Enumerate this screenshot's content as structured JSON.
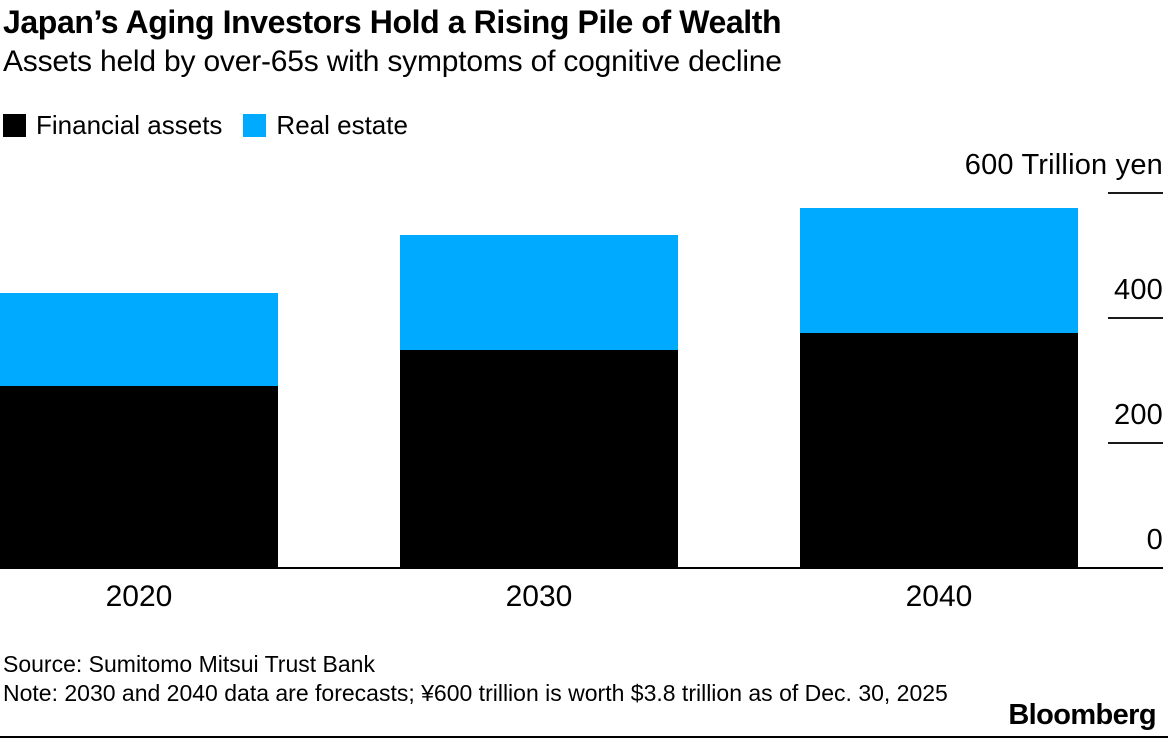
{
  "header": {
    "title": "Japan’s Aging Investors Hold a Rising Pile of Wealth",
    "subtitle": "Assets held by over-65s with symptoms of cognitive decline"
  },
  "chart_data": {
    "type": "bar",
    "stacked": true,
    "unit": "Trillion yen",
    "categories": [
      "2020",
      "2030",
      "2040"
    ],
    "series": [
      {
        "name": "Financial assets",
        "color": "#000000",
        "values": [
          290,
          348,
          374
        ]
      },
      {
        "name": "Real estate",
        "color": "#00AAFF",
        "values": [
          148,
          183,
          200
        ]
      }
    ],
    "y_axis": {
      "top_label": "600 Trillion yen",
      "ticks": [
        600,
        400,
        200,
        0
      ],
      "ylim": [
        0,
        600
      ],
      "position": "right",
      "grid": false
    },
    "legend_position": "top-left"
  },
  "footer": {
    "source": "Source: Sumitomo Mitsui Trust Bank",
    "note": "Note: 2030 and 2040 data are forecasts; ¥600 trillion is worth $3.8 trillion as of Dec. 30, 2025",
    "logo": "Bloomberg"
  }
}
